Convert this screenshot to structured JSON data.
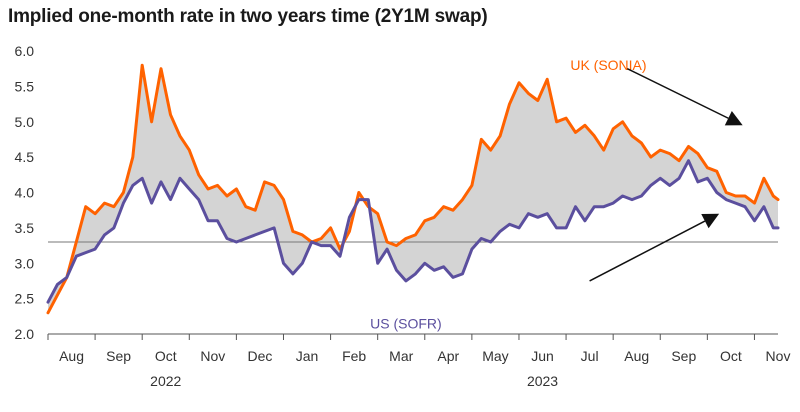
{
  "chart_data": {
    "type": "line",
    "title": "Implied one-month rate in two years time (2Y1M swap)",
    "xlabel": "",
    "ylabel": "",
    "ylim": [
      2.0,
      6.0
    ],
    "yticks": [
      "2.0",
      "2.5",
      "3.0",
      "3.5",
      "4.0",
      "4.5",
      "5.0",
      "5.5",
      "6.0"
    ],
    "x_range": [
      0,
      15.5
    ],
    "month_ticks": [
      {
        "x": 0.5,
        "label": "Aug"
      },
      {
        "x": 1.5,
        "label": "Sep"
      },
      {
        "x": 2.5,
        "label": "Oct"
      },
      {
        "x": 3.5,
        "label": "Nov"
      },
      {
        "x": 4.5,
        "label": "Dec"
      },
      {
        "x": 5.5,
        "label": "Jan"
      },
      {
        "x": 6.5,
        "label": "Feb"
      },
      {
        "x": 7.5,
        "label": "Mar"
      },
      {
        "x": 8.5,
        "label": "Apr"
      },
      {
        "x": 9.5,
        "label": "May"
      },
      {
        "x": 10.5,
        "label": "Jun"
      },
      {
        "x": 11.5,
        "label": "Jul"
      },
      {
        "x": 12.5,
        "label": "Aug"
      },
      {
        "x": 13.5,
        "label": "Sep"
      },
      {
        "x": 14.5,
        "label": "Oct"
      },
      {
        "x": 15.5,
        "label": "Nov"
      }
    ],
    "year_labels": [
      {
        "x": 2.5,
        "label": "2022"
      },
      {
        "x": 10.5,
        "label": "2023"
      }
    ],
    "reference_line": 3.3,
    "series_labels": {
      "uk": "UK (SONIA)",
      "us": "US (SOFR)"
    },
    "x": [
      0.0,
      0.2,
      0.4,
      0.6,
      0.8,
      1.0,
      1.2,
      1.4,
      1.6,
      1.8,
      2.0,
      2.2,
      2.4,
      2.6,
      2.8,
      3.0,
      3.2,
      3.4,
      3.6,
      3.8,
      4.0,
      4.2,
      4.4,
      4.6,
      4.8,
      5.0,
      5.2,
      5.4,
      5.6,
      5.8,
      6.0,
      6.2,
      6.4,
      6.6,
      6.8,
      7.0,
      7.2,
      7.4,
      7.6,
      7.8,
      8.0,
      8.2,
      8.4,
      8.6,
      8.8,
      9.0,
      9.2,
      9.4,
      9.6,
      9.8,
      10.0,
      10.2,
      10.4,
      10.6,
      10.8,
      11.0,
      11.2,
      11.4,
      11.6,
      11.8,
      12.0,
      12.2,
      12.4,
      12.6,
      12.8,
      13.0,
      13.2,
      13.4,
      13.6,
      13.8,
      14.0,
      14.2,
      14.4,
      14.6,
      14.8,
      15.0,
      15.2,
      15.4,
      15.5
    ],
    "series": [
      {
        "name": "UK (SONIA)",
        "color": "#FF6200",
        "values": [
          2.3,
          2.55,
          2.8,
          3.3,
          3.8,
          3.7,
          3.85,
          3.8,
          4.0,
          4.5,
          5.8,
          5.0,
          5.75,
          5.1,
          4.8,
          4.6,
          4.25,
          4.05,
          4.1,
          3.95,
          4.05,
          3.8,
          3.75,
          4.15,
          4.1,
          3.9,
          3.45,
          3.4,
          3.3,
          3.35,
          3.5,
          3.2,
          3.45,
          4.0,
          3.8,
          3.7,
          3.3,
          3.25,
          3.35,
          3.4,
          3.6,
          3.65,
          3.8,
          3.75,
          3.9,
          4.1,
          4.75,
          4.6,
          4.8,
          5.25,
          5.55,
          5.4,
          5.3,
          5.6,
          5.0,
          5.05,
          4.85,
          4.95,
          4.8,
          4.6,
          4.9,
          5.0,
          4.8,
          4.7,
          4.5,
          4.6,
          4.55,
          4.45,
          4.65,
          4.55,
          4.35,
          4.3,
          4.0,
          3.95,
          3.95,
          3.85,
          4.2,
          3.95,
          3.9
        ]
      },
      {
        "name": "US (SOFR)",
        "color": "#5B4F9E",
        "values": [
          2.45,
          2.7,
          2.8,
          3.1,
          3.15,
          3.2,
          3.4,
          3.5,
          3.85,
          4.1,
          4.2,
          3.85,
          4.15,
          3.9,
          4.2,
          4.05,
          3.9,
          3.6,
          3.6,
          3.35,
          3.3,
          3.35,
          3.4,
          3.45,
          3.5,
          3.0,
          2.85,
          3.0,
          3.3,
          3.25,
          3.25,
          3.1,
          3.65,
          3.9,
          3.9,
          3.0,
          3.2,
          2.9,
          2.75,
          2.85,
          3.0,
          2.9,
          2.95,
          2.8,
          2.85,
          3.2,
          3.35,
          3.3,
          3.45,
          3.55,
          3.5,
          3.7,
          3.65,
          3.7,
          3.5,
          3.5,
          3.8,
          3.6,
          3.8,
          3.8,
          3.85,
          3.95,
          3.9,
          3.95,
          4.1,
          4.2,
          4.1,
          4.2,
          4.45,
          4.15,
          4.2,
          4.0,
          3.9,
          3.85,
          3.8,
          3.6,
          3.8,
          3.5,
          3.5
        ]
      }
    ],
    "colors": {
      "uk": "#FF6200",
      "us": "#5B4F9E",
      "fill": "#D4D4D4",
      "axis": "#555555",
      "arrow": "#111111"
    },
    "annotations": [
      {
        "type": "arrow",
        "from": [
          12.3,
          5.75
        ],
        "to": [
          14.75,
          4.95
        ]
      },
      {
        "type": "arrow",
        "from": [
          11.5,
          2.75
        ],
        "to": [
          14.25,
          3.7
        ]
      }
    ]
  }
}
